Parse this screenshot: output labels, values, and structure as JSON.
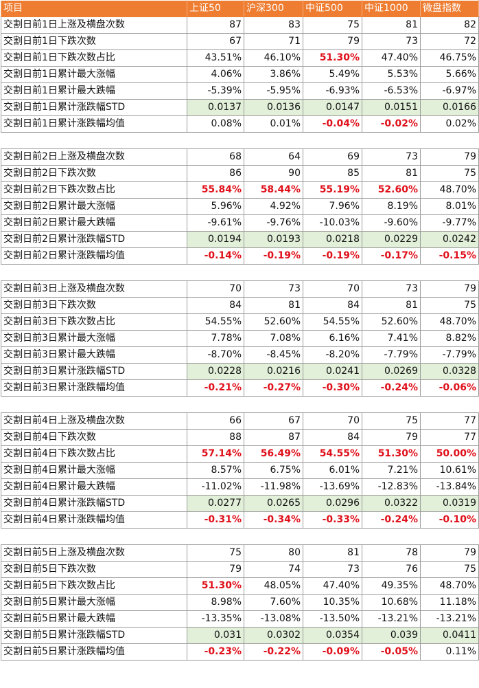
{
  "headers": [
    "项目",
    "上证50",
    "沪深300",
    "中证500",
    "中证1000",
    "微盘指数"
  ],
  "groups": [
    {
      "rows": [
        {
          "label": "交割日前1日上涨及横盘次数",
          "values": [
            "87",
            "83",
            "75",
            "81",
            "82"
          ],
          "red": []
        },
        {
          "label": "交割日前1日下跌次数",
          "values": [
            "67",
            "71",
            "79",
            "73",
            "72"
          ],
          "red": []
        },
        {
          "label": "交割日前1日下跌次数占比",
          "values": [
            "43.51%",
            "46.10%",
            "51.30%",
            "47.40%",
            "46.75%"
          ],
          "red": [
            2
          ]
        },
        {
          "label": "交割日前1日累计最大涨幅",
          "values": [
            "4.06%",
            "3.86%",
            "5.49%",
            "5.53%",
            "5.66%"
          ],
          "red": []
        },
        {
          "label": "交割日前1日累计最大跌幅",
          "values": [
            "-5.39%",
            "-5.95%",
            "-6.93%",
            "-6.53%",
            "-6.97%"
          ],
          "red": []
        },
        {
          "label": "交割日前1日累计涨跌幅STD",
          "values": [
            "0.0137",
            "0.0136",
            "0.0147",
            "0.0151",
            "0.0166"
          ],
          "red": [],
          "std": true
        },
        {
          "label": "交割日前1日累计涨跌幅均值",
          "values": [
            "0.08%",
            "0.01%",
            "-0.04%",
            "-0.02%",
            "0.02%"
          ],
          "red": [
            2,
            3
          ]
        }
      ]
    },
    {
      "rows": [
        {
          "label": "交割日前2日上涨及横盘次数",
          "values": [
            "68",
            "64",
            "69",
            "73",
            "79"
          ],
          "red": []
        },
        {
          "label": "交割日前2日下跌次数",
          "values": [
            "86",
            "90",
            "85",
            "81",
            "75"
          ],
          "red": []
        },
        {
          "label": "交割日前2日下跌次数占比",
          "values": [
            "55.84%",
            "58.44%",
            "55.19%",
            "52.60%",
            "48.70%"
          ],
          "red": [
            0,
            1,
            2,
            3
          ]
        },
        {
          "label": "交割日前2日累计最大涨幅",
          "values": [
            "5.96%",
            "4.92%",
            "7.96%",
            "8.19%",
            "8.01%"
          ],
          "red": []
        },
        {
          "label": "交割日前2日累计最大跌幅",
          "values": [
            "-9.61%",
            "-9.76%",
            "-10.03%",
            "-9.60%",
            "-9.77%"
          ],
          "red": []
        },
        {
          "label": "交割日前2日累计涨跌幅STD",
          "values": [
            "0.0194",
            "0.0193",
            "0.0218",
            "0.0229",
            "0.0242"
          ],
          "red": [],
          "std": true
        },
        {
          "label": "交割日前2日累计涨跌幅均值",
          "values": [
            "-0.14%",
            "-0.19%",
            "-0.19%",
            "-0.17%",
            "-0.15%"
          ],
          "red": [
            0,
            1,
            2,
            3,
            4
          ]
        }
      ]
    },
    {
      "rows": [
        {
          "label": "交割日前3日上涨及横盘次数",
          "values": [
            "70",
            "73",
            "70",
            "73",
            "79"
          ],
          "red": []
        },
        {
          "label": "交割日前3日下跌次数",
          "values": [
            "84",
            "81",
            "84",
            "81",
            "75"
          ],
          "red": []
        },
        {
          "label": "交割日前3日下跌次数占比",
          "values": [
            "54.55%",
            "52.60%",
            "54.55%",
            "52.60%",
            "48.70%"
          ],
          "red": []
        },
        {
          "label": "交割日前3日累计最大涨幅",
          "values": [
            "7.78%",
            "7.08%",
            "6.16%",
            "7.41%",
            "8.82%"
          ],
          "red": []
        },
        {
          "label": "交割日前3日累计最大跌幅",
          "values": [
            "-8.70%",
            "-8.45%",
            "-8.20%",
            "-7.79%",
            "-7.79%"
          ],
          "red": []
        },
        {
          "label": "交割日前3日累计涨跌幅STD",
          "values": [
            "0.0228",
            "0.0216",
            "0.0241",
            "0.0269",
            "0.0328"
          ],
          "red": [],
          "std": true
        },
        {
          "label": "交割日前3日累计涨跌幅均值",
          "values": [
            "-0.21%",
            "-0.27%",
            "-0.30%",
            "-0.24%",
            "-0.06%"
          ],
          "red": [
            0,
            1,
            2,
            3,
            4
          ]
        }
      ]
    },
    {
      "rows": [
        {
          "label": "交割日前4日上涨及横盘次数",
          "values": [
            "66",
            "67",
            "70",
            "75",
            "77"
          ],
          "red": []
        },
        {
          "label": "交割日前4日下跌次数",
          "values": [
            "88",
            "87",
            "84",
            "79",
            "77"
          ],
          "red": []
        },
        {
          "label": "交割日前4日下跌次数占比",
          "values": [
            "57.14%",
            "56.49%",
            "54.55%",
            "51.30%",
            "50.00%"
          ],
          "red": [
            0,
            1,
            2,
            3,
            4
          ]
        },
        {
          "label": "交割日前4日累计最大涨幅",
          "values": [
            "8.57%",
            "6.75%",
            "6.01%",
            "7.21%",
            "10.61%"
          ],
          "red": []
        },
        {
          "label": "交割日前4日累计最大跌幅",
          "values": [
            "-11.02%",
            "-11.98%",
            "-13.69%",
            "-12.83%",
            "-13.84%"
          ],
          "red": []
        },
        {
          "label": "交割日前4日累计涨跌幅STD",
          "values": [
            "0.0277",
            "0.0265",
            "0.0296",
            "0.0322",
            "0.0319"
          ],
          "red": [],
          "std": true
        },
        {
          "label": "交割日前4日累计涨跌幅均值",
          "values": [
            "-0.31%",
            "-0.34%",
            "-0.33%",
            "-0.24%",
            "-0.10%"
          ],
          "red": [
            0,
            1,
            2,
            3,
            4
          ]
        }
      ]
    },
    {
      "rows": [
        {
          "label": "交割日前5日上涨及横盘次数",
          "values": [
            "75",
            "80",
            "81",
            "78",
            "79"
          ],
          "red": []
        },
        {
          "label": "交割日前5日下跌次数",
          "values": [
            "79",
            "74",
            "73",
            "76",
            "75"
          ],
          "red": []
        },
        {
          "label": "交割日前5日下跌次数占比",
          "values": [
            "51.30%",
            "48.05%",
            "47.40%",
            "49.35%",
            "48.70%"
          ],
          "red": [
            0
          ]
        },
        {
          "label": "交割日前5日累计最大涨幅",
          "values": [
            "8.98%",
            "7.60%",
            "10.35%",
            "10.68%",
            "11.18%"
          ],
          "red": []
        },
        {
          "label": "交割日前5日累计最大跌幅",
          "values": [
            "-13.35%",
            "-13.08%",
            "-13.50%",
            "-13.21%",
            "-13.21%"
          ],
          "red": []
        },
        {
          "label": "交割日前5日累计涨跌幅STD",
          "values": [
            "0.031",
            "0.0302",
            "0.0354",
            "0.039",
            "0.0411"
          ],
          "red": [],
          "std": true
        },
        {
          "label": "交割日前5日累计涨跌幅均值",
          "values": [
            "-0.23%",
            "-0.22%",
            "-0.09%",
            "-0.05%",
            "0.11%"
          ],
          "red": [
            0,
            1,
            2,
            3
          ]
        }
      ]
    }
  ]
}
